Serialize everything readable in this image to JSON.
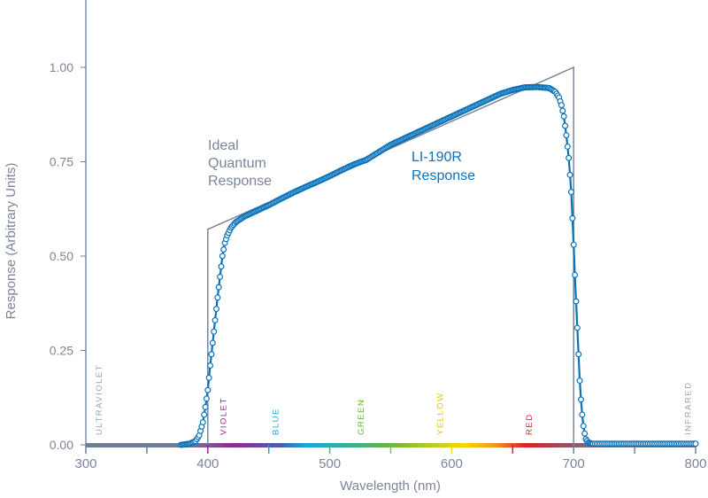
{
  "chart_data": {
    "type": "line",
    "title": "",
    "xlabel": "Wavelength (nm)",
    "ylabel": "Response (Arbitrary Units)",
    "xlim": [
      300,
      800
    ],
    "ylim": [
      0,
      1.2
    ],
    "xticks": [
      300,
      400,
      500,
      600,
      700,
      800
    ],
    "yticks": [
      0,
      0.25,
      0.5,
      0.75,
      1.0
    ],
    "ytick_labels": [
      "0.00",
      "0.25",
      "0.50",
      "0.75",
      "1.00"
    ],
    "grid": false,
    "colors": {
      "axis": "#6e7f96",
      "ideal": "#7a8599",
      "sensor": "#0a72b8"
    },
    "series": [
      {
        "name": "Ideal Quantum Response",
        "label_lines": [
          "Ideal",
          "Quantum",
          "Response"
        ],
        "x": [
          400,
          400,
          700,
          700
        ],
        "y": [
          0,
          0.571,
          1.0,
          0
        ]
      },
      {
        "name": "LI-190R Response",
        "label_lines": [
          "LI-190R",
          "Response"
        ],
        "x": [
          378,
          385,
          390,
          393,
          396,
          398,
          400,
          402,
          404,
          406,
          408,
          410,
          412,
          414,
          416,
          419,
          423,
          430,
          440,
          450,
          460,
          470,
          480,
          490,
          500,
          510,
          520,
          530,
          540,
          550,
          560,
          570,
          580,
          590,
          600,
          610,
          620,
          630,
          640,
          650,
          660,
          670,
          680,
          685,
          688,
          690,
          692,
          694,
          696,
          698,
          699,
          700,
          701,
          702,
          703,
          704,
          705,
          706,
          707,
          708,
          709,
          710,
          712,
          715,
          730,
          750,
          770,
          800
        ],
        "y": [
          0,
          0.003,
          0.01,
          0.025,
          0.06,
          0.1,
          0.145,
          0.21,
          0.27,
          0.33,
          0.39,
          0.445,
          0.5,
          0.535,
          0.555,
          0.575,
          0.59,
          0.605,
          0.62,
          0.635,
          0.652,
          0.668,
          0.683,
          0.697,
          0.712,
          0.728,
          0.743,
          0.755,
          0.775,
          0.795,
          0.81,
          0.825,
          0.84,
          0.855,
          0.87,
          0.885,
          0.9,
          0.915,
          0.93,
          0.94,
          0.947,
          0.948,
          0.945,
          0.935,
          0.92,
          0.9,
          0.87,
          0.82,
          0.76,
          0.67,
          0.6,
          0.53,
          0.45,
          0.38,
          0.31,
          0.24,
          0.17,
          0.12,
          0.08,
          0.05,
          0.03,
          0.015,
          0.006,
          0.003,
          0.003,
          0.003,
          0.003,
          0.003
        ]
      }
    ],
    "spectrum_labels": [
      {
        "text": "ULTRAVIOLET",
        "x": 310,
        "color": "#9aa3b0"
      },
      {
        "text": "VIOLET",
        "x": 412,
        "color": "#8e2a8c"
      },
      {
        "text": "BLUE",
        "x": 455,
        "color": "#1aa6df"
      },
      {
        "text": "GREEN",
        "x": 525,
        "color": "#6cb33f"
      },
      {
        "text": "YELLOW",
        "x": 590,
        "color": "#e8c400"
      },
      {
        "text": "RED",
        "x": 663,
        "color": "#d8232c"
      },
      {
        "text": "INFRARED",
        "x": 793,
        "color": "#9aa3b0"
      }
    ]
  }
}
